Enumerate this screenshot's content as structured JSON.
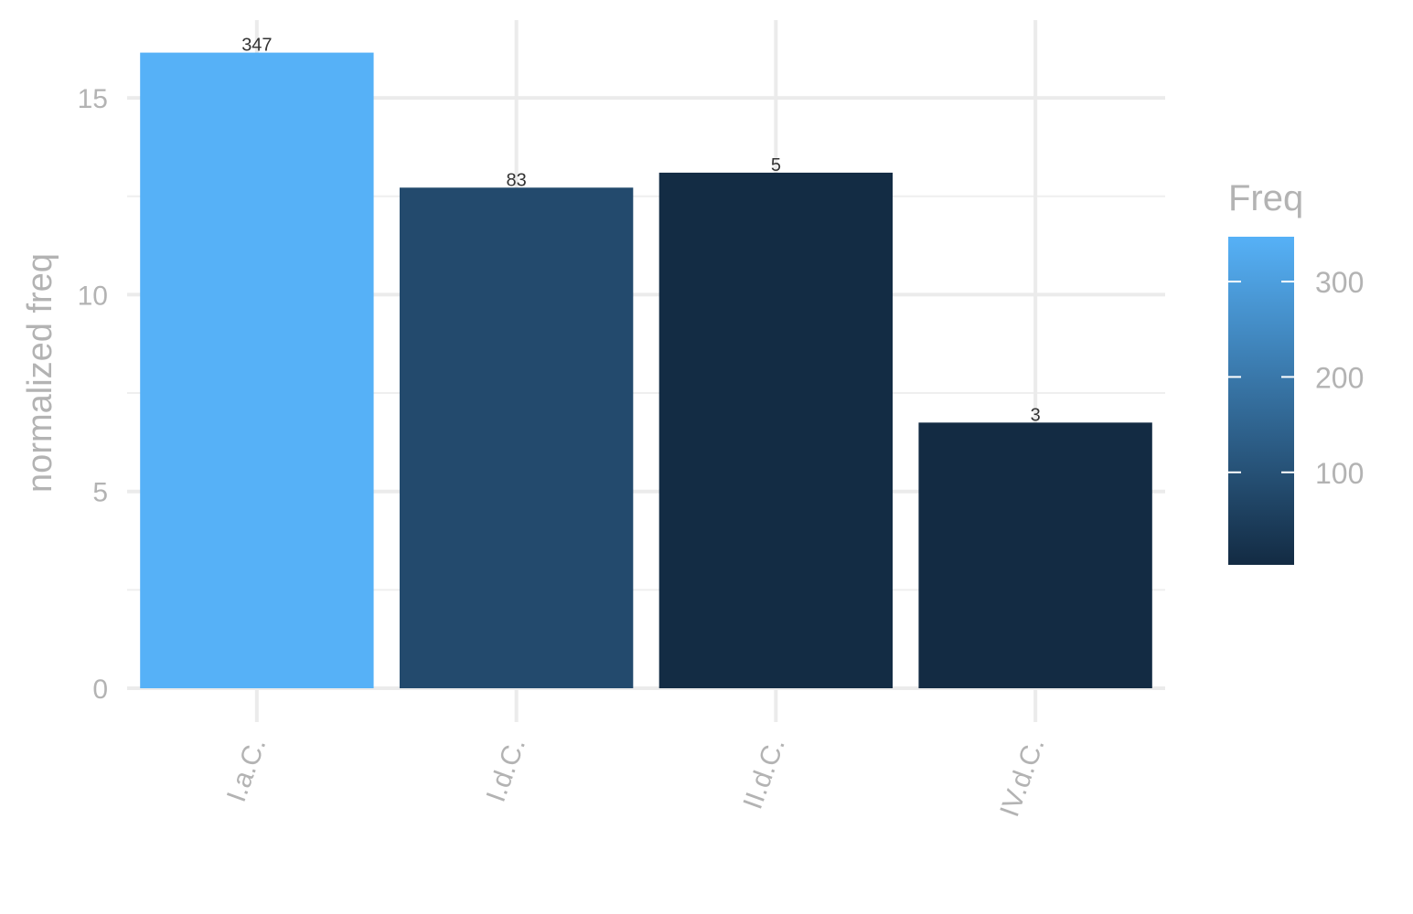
{
  "chart_data": {
    "type": "bar",
    "categories": [
      "I.a.C.",
      "I.d.C.",
      "II.d.C.",
      "IV.d.C."
    ],
    "values": [
      16.15,
      12.72,
      13.1,
      6.75
    ],
    "freq": [
      347,
      83,
      5,
      3
    ],
    "bar_labels": [
      "347",
      "83",
      "5",
      "3"
    ],
    "xlabel": "",
    "ylabel": "normalized freq",
    "ylim": [
      0,
      16.9
    ],
    "yticks": [
      0,
      5,
      10,
      15
    ],
    "ytick_labels": [
      "0",
      "5",
      "10",
      "15"
    ],
    "grid": true,
    "legend": {
      "title": "Freq",
      "placement": "right",
      "range": [
        3,
        347
      ],
      "ticks": [
        100,
        200,
        300
      ],
      "tick_labels": [
        "100",
        "200",
        "300"
      ],
      "color_low": "#132B43",
      "color_high": "#56B1F7"
    }
  }
}
